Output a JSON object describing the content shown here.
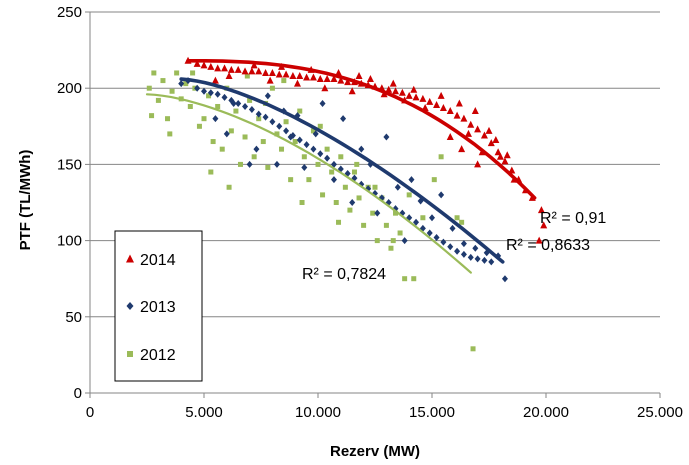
{
  "chart_data": {
    "type": "scatter",
    "title": "",
    "xlabel": "Rezerv (MW)",
    "ylabel": "PTF (TL/MWh)",
    "xlim": [
      0,
      25000
    ],
    "ylim": [
      0,
      250
    ],
    "x_ticks": [
      0,
      5000,
      10000,
      15000,
      20000,
      25000
    ],
    "x_tick_labels": [
      "0",
      "5.000",
      "10.000",
      "15.000",
      "20.000",
      "25.000"
    ],
    "y_ticks": [
      0,
      50,
      100,
      150,
      200,
      250
    ],
    "y_tick_labels": [
      "0",
      "50",
      "100",
      "150",
      "200",
      "250"
    ],
    "grid": "horizontal",
    "legend": "bottom-left",
    "series": [
      {
        "name": "2014",
        "marker": "triangle",
        "color": "#cc0000",
        "points": [
          [
            4300,
            218
          ],
          [
            4700,
            216
          ],
          [
            5000,
            215
          ],
          [
            5300,
            214
          ],
          [
            5600,
            213
          ],
          [
            5900,
            213
          ],
          [
            6200,
            212
          ],
          [
            6500,
            212
          ],
          [
            6800,
            211
          ],
          [
            7100,
            211
          ],
          [
            7400,
            211
          ],
          [
            7700,
            210
          ],
          [
            8000,
            210
          ],
          [
            8300,
            209
          ],
          [
            8600,
            209
          ],
          [
            8900,
            208
          ],
          [
            9200,
            208
          ],
          [
            9500,
            207
          ],
          [
            9800,
            207
          ],
          [
            10100,
            206
          ],
          [
            10400,
            206
          ],
          [
            10700,
            206
          ],
          [
            11000,
            205
          ],
          [
            11300,
            204
          ],
          [
            11600,
            204
          ],
          [
            11900,
            203
          ],
          [
            12200,
            202
          ],
          [
            12500,
            201
          ],
          [
            12800,
            200
          ],
          [
            13100,
            199
          ],
          [
            13400,
            198
          ],
          [
            13700,
            197
          ],
          [
            14000,
            195
          ],
          [
            14300,
            194
          ],
          [
            14600,
            193
          ],
          [
            14900,
            191
          ],
          [
            15200,
            189
          ],
          [
            15500,
            187
          ],
          [
            15800,
            185
          ],
          [
            16100,
            182
          ],
          [
            16400,
            180
          ],
          [
            16700,
            176
          ],
          [
            17000,
            173
          ],
          [
            17300,
            169
          ],
          [
            17600,
            164
          ],
          [
            17900,
            158
          ],
          [
            18200,
            152
          ],
          [
            18500,
            146
          ],
          [
            18800,
            140
          ],
          [
            19100,
            133
          ],
          [
            19400,
            128
          ],
          [
            19800,
            120
          ],
          [
            5500,
            205
          ],
          [
            6100,
            208
          ],
          [
            7200,
            215
          ],
          [
            7900,
            205
          ],
          [
            8400,
            214
          ],
          [
            9100,
            203
          ],
          [
            9700,
            212
          ],
          [
            10300,
            200
          ],
          [
            10900,
            210
          ],
          [
            11500,
            198
          ],
          [
            11800,
            208
          ],
          [
            12300,
            206
          ],
          [
            12900,
            196
          ],
          [
            13300,
            203
          ],
          [
            13800,
            192
          ],
          [
            14200,
            199
          ],
          [
            14700,
            187
          ],
          [
            15400,
            195
          ],
          [
            15800,
            168
          ],
          [
            16200,
            190
          ],
          [
            16300,
            160
          ],
          [
            16600,
            170
          ],
          [
            16900,
            185
          ],
          [
            17000,
            150
          ],
          [
            17200,
            158
          ],
          [
            17500,
            172
          ],
          [
            17800,
            166
          ],
          [
            18000,
            155
          ],
          [
            18300,
            156
          ],
          [
            18600,
            140
          ],
          [
            19700,
            100
          ],
          [
            19900,
            110
          ]
        ],
        "trend": {
          "r2_label": "R² = 0,91",
          "x": [
            4300,
            19500
          ],
          "y0": 218,
          "y1": 128
        }
      },
      {
        "name": "2013",
        "marker": "diamond",
        "color": "#1f3a6e",
        "points": [
          [
            4000,
            203
          ],
          [
            4300,
            205
          ],
          [
            4700,
            200
          ],
          [
            5000,
            198
          ],
          [
            5300,
            197
          ],
          [
            5600,
            196
          ],
          [
            5900,
            194
          ],
          [
            6200,
            192
          ],
          [
            6500,
            190
          ],
          [
            6800,
            188
          ],
          [
            7100,
            186
          ],
          [
            7400,
            183
          ],
          [
            7700,
            181
          ],
          [
            8000,
            178
          ],
          [
            8300,
            175
          ],
          [
            8600,
            172
          ],
          [
            8900,
            169
          ],
          [
            9200,
            166
          ],
          [
            9500,
            163
          ],
          [
            9800,
            160
          ],
          [
            10100,
            157
          ],
          [
            10400,
            154
          ],
          [
            10700,
            150
          ],
          [
            11000,
            147
          ],
          [
            11300,
            144
          ],
          [
            11600,
            141
          ],
          [
            11900,
            137
          ],
          [
            12200,
            134
          ],
          [
            12500,
            131
          ],
          [
            12800,
            128
          ],
          [
            13100,
            125
          ],
          [
            13400,
            121
          ],
          [
            13700,
            118
          ],
          [
            14000,
            115
          ],
          [
            14300,
            112
          ],
          [
            14600,
            108
          ],
          [
            14900,
            105
          ],
          [
            15200,
            102
          ],
          [
            15500,
            99
          ],
          [
            15800,
            96
          ],
          [
            16100,
            93
          ],
          [
            16400,
            91
          ],
          [
            16700,
            89
          ],
          [
            17000,
            88
          ],
          [
            17300,
            87
          ],
          [
            17600,
            86
          ],
          [
            18200,
            75
          ],
          [
            5500,
            180
          ],
          [
            6000,
            170
          ],
          [
            6300,
            190
          ],
          [
            7000,
            150
          ],
          [
            7300,
            160
          ],
          [
            7800,
            195
          ],
          [
            8200,
            150
          ],
          [
            8500,
            185
          ],
          [
            8800,
            168
          ],
          [
            9100,
            182
          ],
          [
            9400,
            148
          ],
          [
            9900,
            170
          ],
          [
            10200,
            190
          ],
          [
            10700,
            140
          ],
          [
            11100,
            180
          ],
          [
            11500,
            125
          ],
          [
            11900,
            160
          ],
          [
            12300,
            150
          ],
          [
            12600,
            118
          ],
          [
            13000,
            168
          ],
          [
            13500,
            135
          ],
          [
            13800,
            100
          ],
          [
            14100,
            140
          ],
          [
            14500,
            126
          ],
          [
            15000,
            115
          ],
          [
            15400,
            130
          ],
          [
            15900,
            108
          ],
          [
            16400,
            98
          ],
          [
            16900,
            95
          ],
          [
            17400,
            92
          ],
          [
            17900,
            90
          ]
        ],
        "trend": {
          "r2_label": "R² = 0,8633",
          "x": [
            4000,
            18100
          ],
          "y0": 206,
          "y1": 86
        }
      },
      {
        "name": "2012",
        "marker": "square",
        "color": "#9bbb59",
        "points": [
          [
            2600,
            200
          ],
          [
            2800,
            210
          ],
          [
            3000,
            192
          ],
          [
            3200,
            205
          ],
          [
            3400,
            180
          ],
          [
            3600,
            198
          ],
          [
            3800,
            210
          ],
          [
            4000,
            193
          ],
          [
            4200,
            203
          ],
          [
            4400,
            188
          ],
          [
            4600,
            200
          ],
          [
            4800,
            175
          ],
          [
            5000,
            180
          ],
          [
            5200,
            195
          ],
          [
            5400,
            165
          ],
          [
            5600,
            188
          ],
          [
            5800,
            160
          ],
          [
            6000,
            200
          ],
          [
            6200,
            172
          ],
          [
            6400,
            185
          ],
          [
            6600,
            150
          ],
          [
            6800,
            168
          ],
          [
            7000,
            192
          ],
          [
            7200,
            155
          ],
          [
            7400,
            180
          ],
          [
            7600,
            165
          ],
          [
            7800,
            148
          ],
          [
            8000,
            200
          ],
          [
            8200,
            170
          ],
          [
            8400,
            160
          ],
          [
            8600,
            178
          ],
          [
            8800,
            140
          ],
          [
            9000,
            165
          ],
          [
            9200,
            185
          ],
          [
            9400,
            155
          ],
          [
            9600,
            140
          ],
          [
            9800,
            172
          ],
          [
            10000,
            150
          ],
          [
            10200,
            130
          ],
          [
            10400,
            160
          ],
          [
            10600,
            145
          ],
          [
            10800,
            125
          ],
          [
            11000,
            155
          ],
          [
            11200,
            135
          ],
          [
            11400,
            120
          ],
          [
            11600,
            145
          ],
          [
            11800,
            128
          ],
          [
            12000,
            110
          ],
          [
            12200,
            135
          ],
          [
            12400,
            118
          ],
          [
            12600,
            100
          ],
          [
            12800,
            128
          ],
          [
            13000,
            110
          ],
          [
            13200,
            95
          ],
          [
            13400,
            118
          ],
          [
            13600,
            105
          ],
          [
            13800,
            75
          ],
          [
            14200,
            75
          ],
          [
            14600,
            115
          ],
          [
            15100,
            140
          ],
          [
            15400,
            155
          ],
          [
            16100,
            115
          ],
          [
            16300,
            112
          ],
          [
            16800,
            29
          ],
          [
            2700,
            182
          ],
          [
            3500,
            170
          ],
          [
            4500,
            210
          ],
          [
            5300,
            145
          ],
          [
            6100,
            135
          ],
          [
            6900,
            208
          ],
          [
            7700,
            190
          ],
          [
            8500,
            205
          ],
          [
            9300,
            125
          ],
          [
            10100,
            175
          ],
          [
            10900,
            112
          ],
          [
            11700,
            150
          ],
          [
            12500,
            135
          ],
          [
            13300,
            100
          ],
          [
            14000,
            130
          ]
        ],
        "trend": {
          "r2_label": "R² = 0,7824",
          "x": [
            2500,
            16700
          ],
          "y0": 196,
          "y1": 79
        }
      }
    ]
  }
}
